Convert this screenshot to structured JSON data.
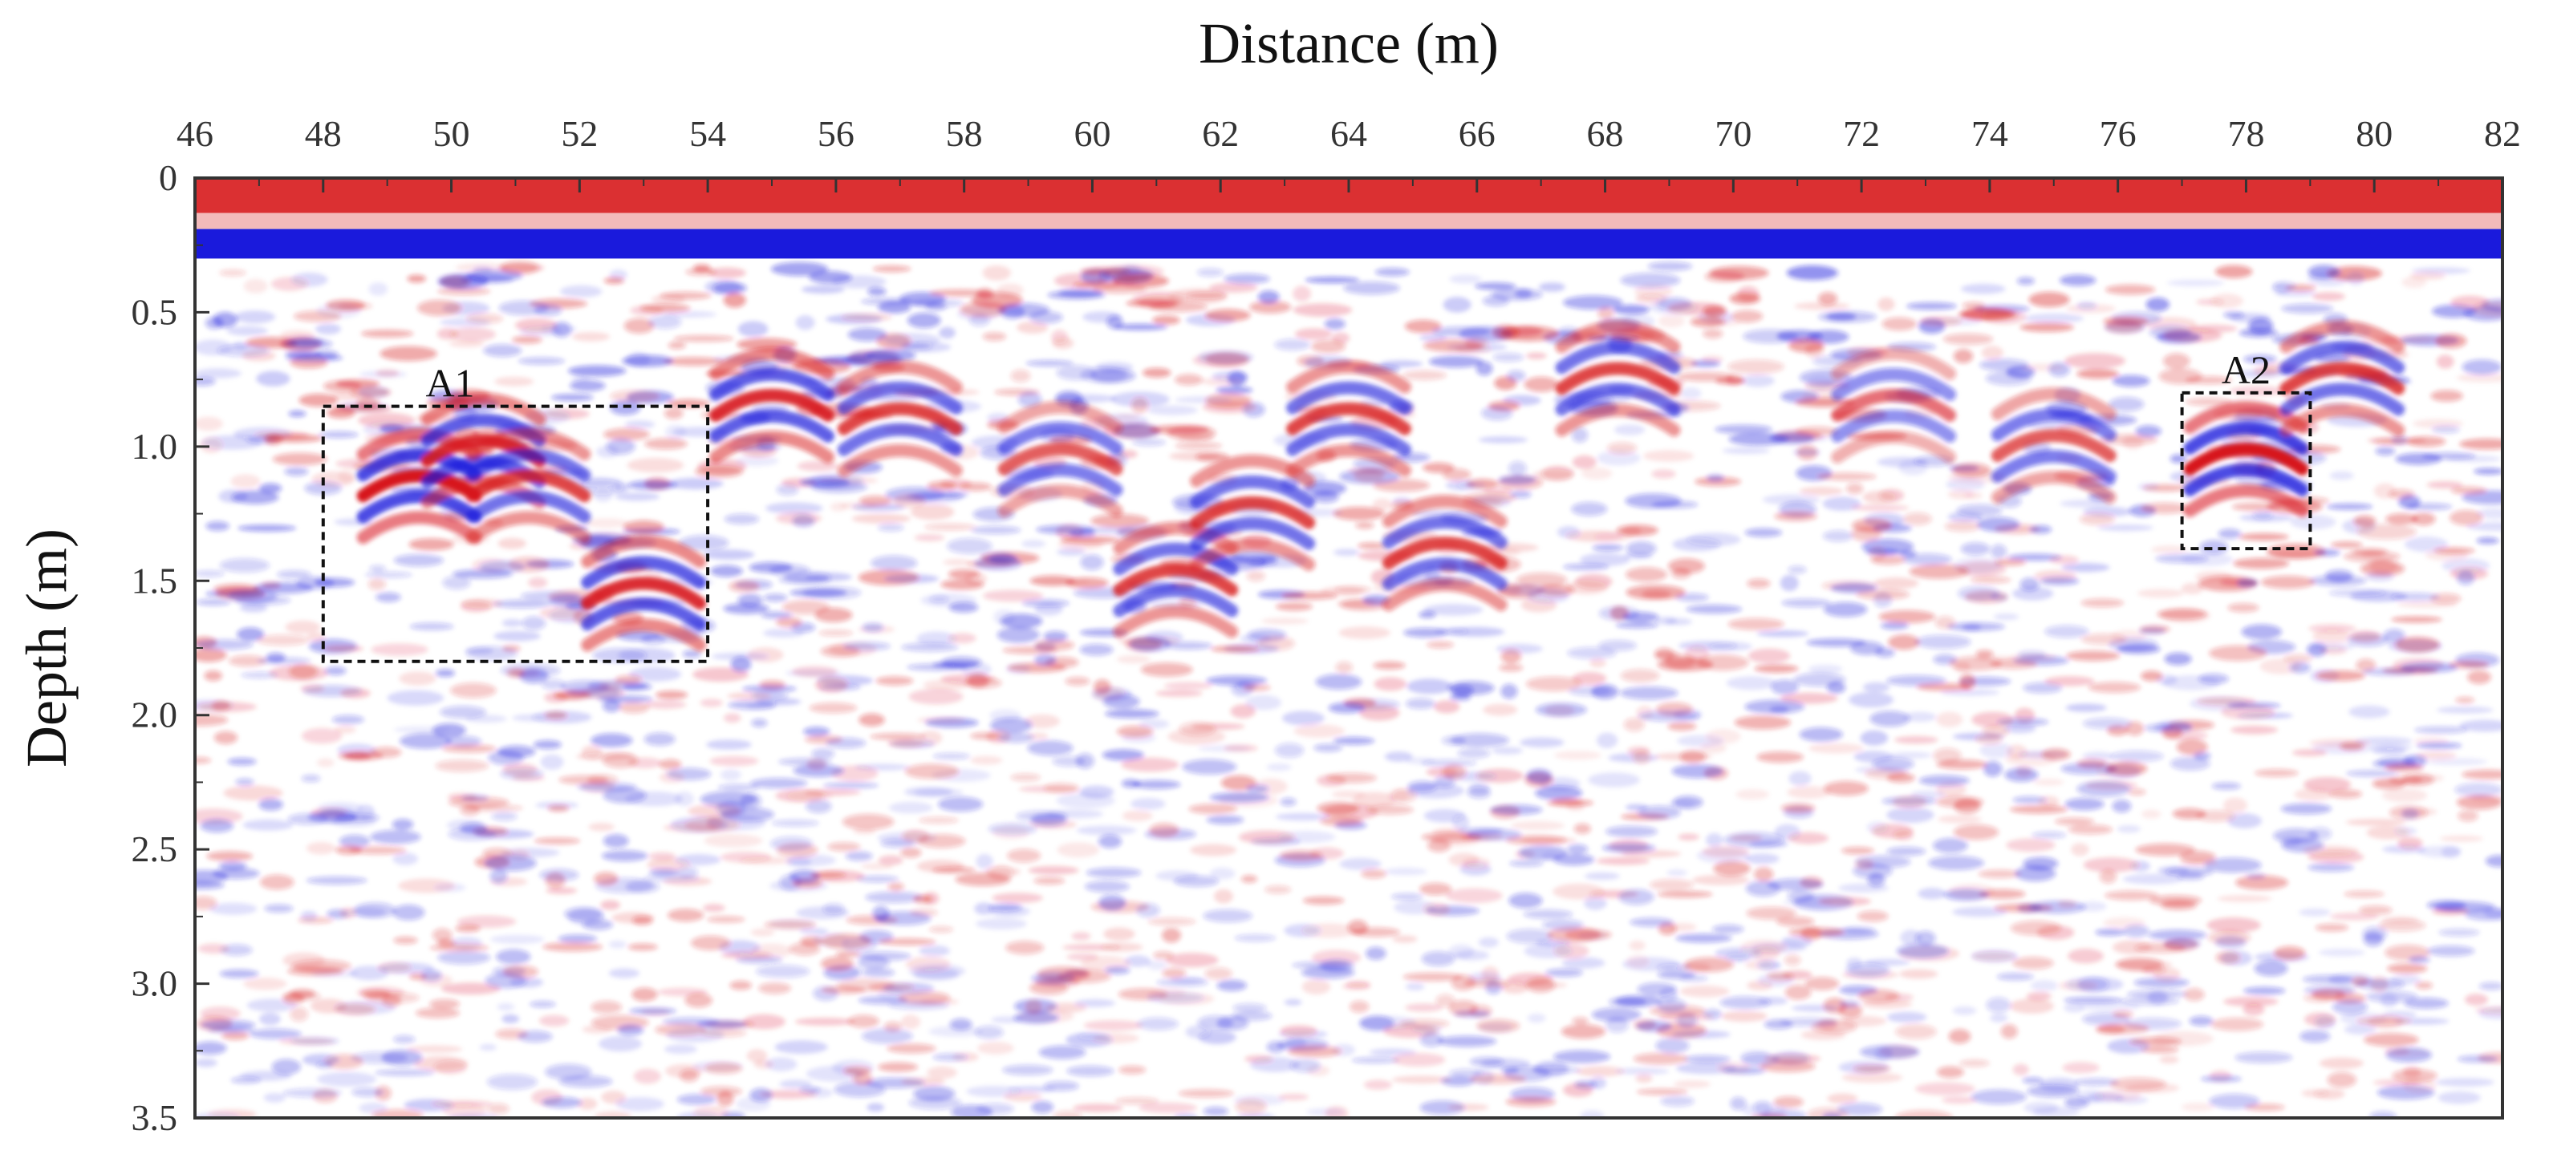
{
  "chart_data": {
    "type": "heatmap",
    "title": "",
    "xlabel": "Distance (m)",
    "ylabel": "Depth (m)",
    "xlim": [
      46,
      82
    ],
    "ylim": [
      0,
      3.5
    ],
    "x_ticks": [
      "46",
      "48",
      "50",
      "52",
      "54",
      "56",
      "58",
      "60",
      "62",
      "64",
      "66",
      "68",
      "70",
      "72",
      "74",
      "76",
      "78",
      "80",
      "82"
    ],
    "y_ticks": [
      "0",
      "0.5",
      "1.0",
      "1.5",
      "2.0",
      "2.5",
      "3.0",
      "3.5"
    ],
    "x_axis_position": "top",
    "y_inverted": true,
    "colormap": {
      "positive": "#d7191c",
      "zero": "#ffffff",
      "negative": "#1a1adc"
    },
    "surface_bands": [
      {
        "depth_from": 0.0,
        "depth_to": 0.13,
        "polarity": "positive",
        "amplitude": 0.9
      },
      {
        "depth_from": 0.13,
        "depth_to": 0.19,
        "polarity": "positive",
        "amplitude": 0.3
      },
      {
        "depth_from": 0.19,
        "depth_to": 0.3,
        "polarity": "negative",
        "amplitude": 1.0
      }
    ],
    "anomalies": [
      {
        "label": "A1",
        "x_range": [
          48,
          54
        ],
        "depth_range": [
          0.85,
          1.8
        ]
      },
      {
        "label": "A2",
        "x_range": [
          77,
          79
        ],
        "depth_range": [
          0.8,
          1.38
        ]
      }
    ],
    "reflectors": [
      {
        "x": 49.5,
        "depth": 1.1,
        "amplitude": 1.0
      },
      {
        "x": 50.5,
        "depth": 0.97,
        "amplitude": 0.9
      },
      {
        "x": 51.2,
        "depth": 1.1,
        "amplitude": 0.8
      },
      {
        "x": 53.0,
        "depth": 1.5,
        "amplitude": 0.9
      },
      {
        "x": 55.0,
        "depth": 0.8,
        "amplitude": 0.9
      },
      {
        "x": 57.0,
        "depth": 0.85,
        "amplitude": 0.8
      },
      {
        "x": 59.5,
        "depth": 1.0,
        "amplitude": 0.7
      },
      {
        "x": 61.3,
        "depth": 1.45,
        "amplitude": 0.8
      },
      {
        "x": 62.5,
        "depth": 1.2,
        "amplitude": 0.8
      },
      {
        "x": 64.0,
        "depth": 0.85,
        "amplitude": 0.8
      },
      {
        "x": 65.5,
        "depth": 1.35,
        "amplitude": 0.8
      },
      {
        "x": 68.2,
        "depth": 0.7,
        "amplitude": 0.8
      },
      {
        "x": 72.5,
        "depth": 0.8,
        "amplitude": 0.6
      },
      {
        "x": 75.0,
        "depth": 0.95,
        "amplitude": 0.7
      },
      {
        "x": 78.0,
        "depth": 1.0,
        "amplitude": 1.0
      },
      {
        "x": 79.5,
        "depth": 0.7,
        "amplitude": 0.8
      }
    ]
  }
}
